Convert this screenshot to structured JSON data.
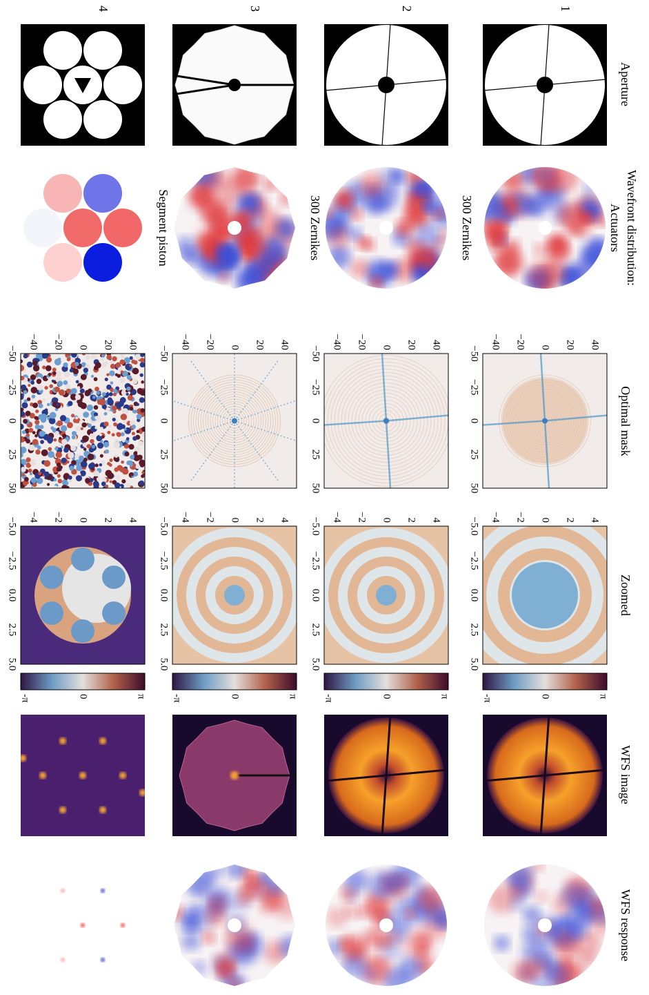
{
  "columns": [
    "Aperture",
    "Wavefront distribution:",
    "Optimal mask",
    "Zoomed",
    "WFS image",
    "WFS response"
  ],
  "rows": [
    {
      "label": "1",
      "wavefront_caption": "Actuators"
    },
    {
      "label": "2",
      "wavefront_caption": "300 Zernikes"
    },
    {
      "label": "3",
      "wavefront_caption": "300 Zernikes"
    },
    {
      "label": "4",
      "wavefront_caption": "Segment piston"
    }
  ],
  "mask_axis": {
    "xticks": [
      "−50",
      "−25",
      "0",
      "25",
      "50"
    ],
    "yticks": [
      "40",
      "20",
      "0",
      "−20",
      "−40"
    ]
  },
  "zoom_axis": {
    "xticks": [
      "−5.0",
      "−2.5",
      "0.0",
      "2.5",
      "5.0"
    ],
    "yticks": [
      "4",
      "2",
      "0",
      "−2",
      "−4"
    ]
  },
  "colorbar_ticks": [
    "π",
    "0",
    "-π"
  ]
}
